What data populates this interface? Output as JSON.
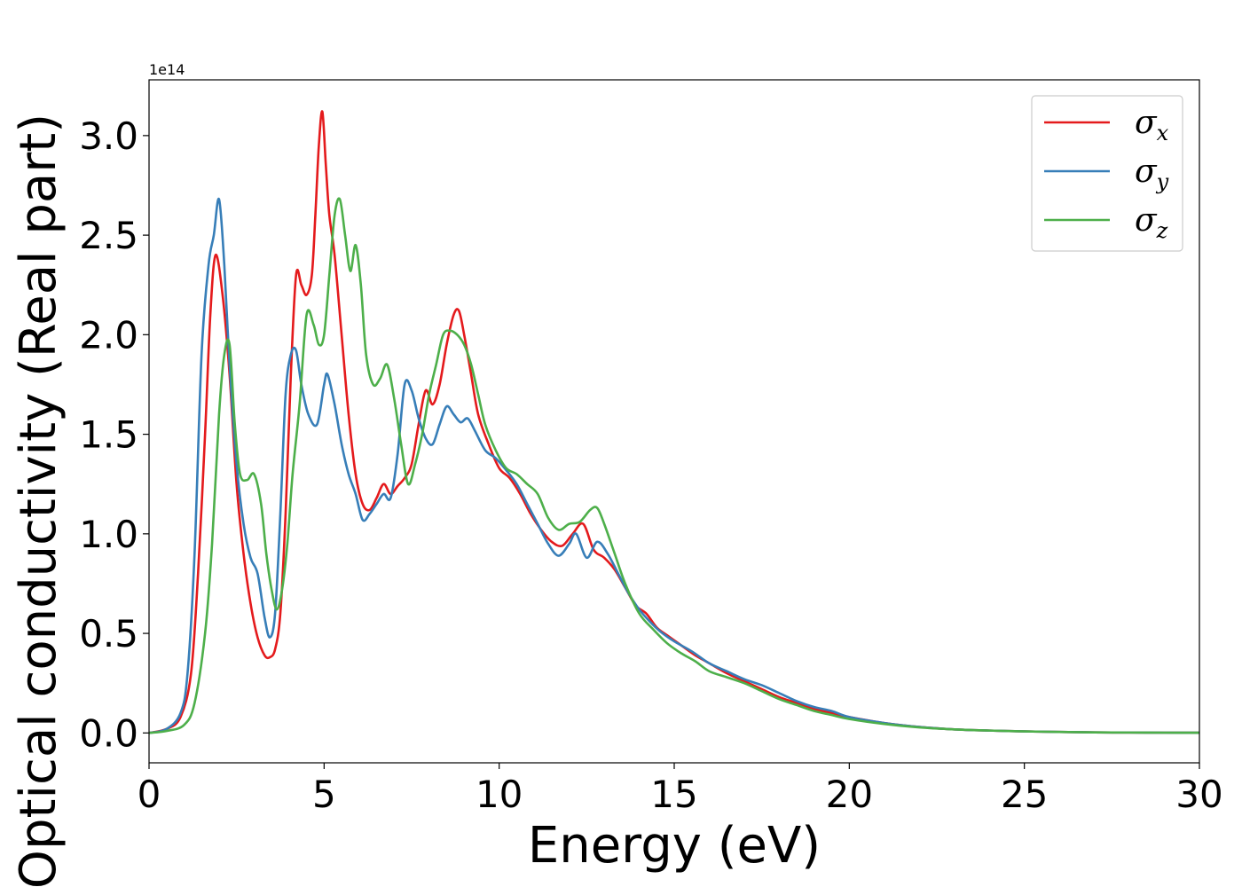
{
  "chart_data": {
    "type": "line",
    "xlabel": "Energy (eV)",
    "ylabel": "Optical conductivity (Real part)",
    "y_offset_label": "1e14",
    "y_scale": 100000000000000.0,
    "xlim": [
      0,
      30
    ],
    "ylim": [
      -0.15,
      3.28
    ],
    "x_ticks": [
      0,
      5,
      10,
      15,
      20,
      25,
      30
    ],
    "x_tick_labels": [
      "0",
      "5",
      "10",
      "15",
      "20",
      "25",
      "30"
    ],
    "y_ticks": [
      0.0,
      0.5,
      1.0,
      1.5,
      2.0,
      2.5,
      3.0
    ],
    "y_tick_labels": [
      "0.0",
      "0.5",
      "1.0",
      "1.5",
      "2.0",
      "2.5",
      "3.0"
    ],
    "grid": false,
    "legend_position": "top-right",
    "series": [
      {
        "name": "σ_x",
        "legend_symbol": "σ",
        "legend_sub": "x",
        "color": "#e41a1c",
        "x": [
          0,
          0.5,
          0.9,
          1.2,
          1.4,
          1.6,
          1.75,
          1.9,
          2.1,
          2.3,
          2.5,
          2.7,
          2.9,
          3.1,
          3.3,
          3.45,
          3.6,
          3.75,
          3.9,
          4.05,
          4.2,
          4.35,
          4.5,
          4.65,
          4.75,
          4.85,
          4.95,
          5.05,
          5.15,
          5.3,
          5.5,
          5.7,
          5.9,
          6.1,
          6.3,
          6.5,
          6.7,
          6.9,
          7.1,
          7.3,
          7.5,
          7.7,
          7.9,
          8.1,
          8.3,
          8.5,
          8.7,
          8.85,
          9.0,
          9.2,
          9.4,
          9.7,
          10.0,
          10.3,
          10.6,
          10.9,
          11.2,
          11.5,
          11.8,
          12.1,
          12.4,
          12.7,
          13.0,
          13.3,
          13.6,
          13.9,
          14.2,
          14.5,
          14.8,
          15.2,
          15.6,
          16,
          16.5,
          17,
          17.5,
          18,
          18.5,
          19,
          19.5,
          20,
          21,
          22,
          23,
          24,
          25,
          26,
          27,
          28,
          29,
          30
        ],
        "y": [
          0,
          0.02,
          0.08,
          0.3,
          0.8,
          1.5,
          2.1,
          2.4,
          2.2,
          1.8,
          1.25,
          0.9,
          0.65,
          0.48,
          0.39,
          0.38,
          0.42,
          0.6,
          1.1,
          1.8,
          2.3,
          2.25,
          2.2,
          2.3,
          2.6,
          2.95,
          3.12,
          2.85,
          2.6,
          2.4,
          2.0,
          1.6,
          1.3,
          1.15,
          1.12,
          1.18,
          1.25,
          1.2,
          1.24,
          1.28,
          1.35,
          1.55,
          1.72,
          1.65,
          1.75,
          1.95,
          2.1,
          2.12,
          2.0,
          1.8,
          1.6,
          1.45,
          1.33,
          1.28,
          1.2,
          1.1,
          1.02,
          0.96,
          0.94,
          1.0,
          1.05,
          0.92,
          0.88,
          0.82,
          0.73,
          0.64,
          0.6,
          0.53,
          0.49,
          0.44,
          0.39,
          0.35,
          0.3,
          0.26,
          0.22,
          0.18,
          0.15,
          0.12,
          0.1,
          0.08,
          0.05,
          0.03,
          0.018,
          0.012,
          0.008,
          0.005,
          0.003,
          0.002,
          0.0015,
          0.001
        ]
      },
      {
        "name": "σ_y",
        "legend_symbol": "σ",
        "legend_sub": "y",
        "color": "#377eb8",
        "x": [
          0,
          0.5,
          0.9,
          1.1,
          1.3,
          1.5,
          1.7,
          1.85,
          2.0,
          2.15,
          2.3,
          2.5,
          2.7,
          2.9,
          3.1,
          3.3,
          3.45,
          3.6,
          3.75,
          3.9,
          4.05,
          4.2,
          4.35,
          4.55,
          4.8,
          5.0,
          5.1,
          5.3,
          5.5,
          5.7,
          5.9,
          6.1,
          6.3,
          6.5,
          6.7,
          6.9,
          7.1,
          7.3,
          7.5,
          7.7,
          7.9,
          8.1,
          8.3,
          8.5,
          8.7,
          8.9,
          9.1,
          9.3,
          9.6,
          9.9,
          10.2,
          10.5,
          10.8,
          11.1,
          11.4,
          11.7,
          12.0,
          12.2,
          12.5,
          12.8,
          13.1,
          13.4,
          13.7,
          14.0,
          14.3,
          14.6,
          15.0,
          15.5,
          16,
          16.5,
          17,
          17.5,
          18,
          18.5,
          19,
          19.5,
          20,
          21,
          22,
          23,
          24,
          25,
          26,
          27,
          28,
          29,
          30
        ],
        "y": [
          0,
          0.02,
          0.1,
          0.3,
          0.9,
          1.9,
          2.35,
          2.5,
          2.68,
          2.35,
          1.85,
          1.35,
          1.05,
          0.88,
          0.8,
          0.58,
          0.48,
          0.6,
          1.1,
          1.7,
          1.9,
          1.92,
          1.75,
          1.6,
          1.55,
          1.75,
          1.8,
          1.65,
          1.45,
          1.3,
          1.2,
          1.07,
          1.1,
          1.15,
          1.2,
          1.18,
          1.4,
          1.75,
          1.72,
          1.58,
          1.48,
          1.45,
          1.55,
          1.64,
          1.6,
          1.56,
          1.58,
          1.52,
          1.42,
          1.38,
          1.32,
          1.25,
          1.15,
          1.05,
          0.95,
          0.89,
          0.95,
          1.0,
          0.88,
          0.96,
          0.9,
          0.8,
          0.7,
          0.62,
          0.56,
          0.51,
          0.46,
          0.41,
          0.35,
          0.31,
          0.27,
          0.24,
          0.2,
          0.16,
          0.13,
          0.11,
          0.08,
          0.05,
          0.03,
          0.018,
          0.012,
          0.008,
          0.005,
          0.003,
          0.002,
          0.0015,
          0.001
        ]
      },
      {
        "name": "σ_z",
        "legend_symbol": "σ",
        "legend_sub": "z",
        "color": "#4daf4a",
        "x": [
          0,
          0.5,
          1.0,
          1.3,
          1.6,
          1.8,
          2.0,
          2.15,
          2.3,
          2.45,
          2.6,
          2.8,
          3.0,
          3.2,
          3.35,
          3.5,
          3.65,
          3.8,
          3.95,
          4.1,
          4.3,
          4.5,
          4.7,
          4.85,
          5.0,
          5.15,
          5.3,
          5.45,
          5.6,
          5.75,
          5.9,
          6.05,
          6.2,
          6.4,
          6.6,
          6.8,
          7.0,
          7.2,
          7.4,
          7.6,
          7.8,
          8.0,
          8.2,
          8.4,
          8.6,
          8.8,
          9.0,
          9.2,
          9.4,
          9.6,
          9.9,
          10.2,
          10.5,
          10.8,
          11.1,
          11.4,
          11.7,
          12.0,
          12.3,
          12.6,
          12.8,
          13.0,
          13.3,
          13.6,
          14.0,
          14.4,
          14.8,
          15.2,
          15.6,
          16,
          16.5,
          17,
          17.5,
          18,
          18.5,
          19,
          19.5,
          20,
          21,
          22,
          23,
          24,
          25,
          26,
          27,
          28,
          29,
          30
        ],
        "y": [
          0,
          0.01,
          0.04,
          0.15,
          0.5,
          0.95,
          1.6,
          1.9,
          1.95,
          1.55,
          1.3,
          1.27,
          1.3,
          1.15,
          0.9,
          0.72,
          0.62,
          0.72,
          0.95,
          1.3,
          1.65,
          2.1,
          2.05,
          1.95,
          2.0,
          2.3,
          2.6,
          2.68,
          2.5,
          2.32,
          2.45,
          2.25,
          1.9,
          1.75,
          1.78,
          1.85,
          1.68,
          1.45,
          1.25,
          1.35,
          1.5,
          1.7,
          1.85,
          2.0,
          2.02,
          2.0,
          1.95,
          1.85,
          1.7,
          1.55,
          1.42,
          1.33,
          1.3,
          1.25,
          1.2,
          1.08,
          1.02,
          1.05,
          1.06,
          1.12,
          1.13,
          1.05,
          0.9,
          0.75,
          0.6,
          0.52,
          0.45,
          0.4,
          0.36,
          0.31,
          0.28,
          0.25,
          0.21,
          0.17,
          0.14,
          0.11,
          0.09,
          0.07,
          0.045,
          0.028,
          0.018,
          0.012,
          0.008,
          0.005,
          0.003,
          0.002,
          0.0015,
          0.001
        ]
      }
    ]
  }
}
